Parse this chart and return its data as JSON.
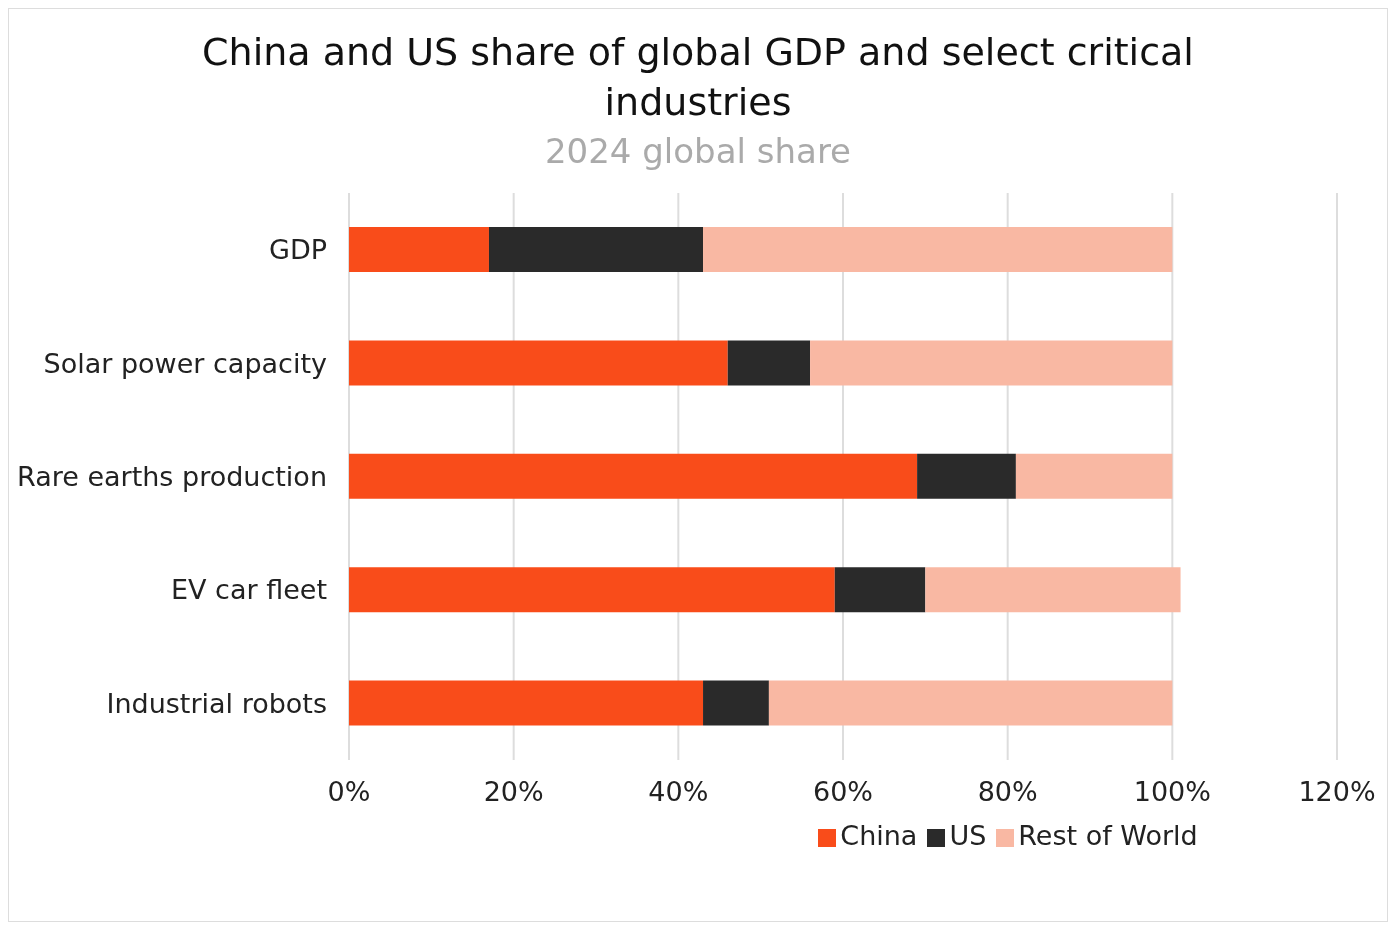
{
  "chart_data": {
    "type": "bar",
    "orientation": "horizontal",
    "stacked": true,
    "title": "China and US share of global GDP and select critical industries",
    "subtitle": "2024 global share",
    "categories": [
      "GDP",
      "Solar power capacity",
      "Rare earths production",
      "EV car fleet",
      "Industrial robots"
    ],
    "series": [
      {
        "name": "China",
        "color": "#f94c1a",
        "values": [
          17,
          46,
          69,
          59,
          43
        ]
      },
      {
        "name": "US",
        "color": "#2a2a2a",
        "values": [
          26,
          10,
          12,
          11,
          8
        ]
      },
      {
        "name": "Rest of World",
        "color": "#f9b8a3",
        "values": [
          57,
          44,
          19,
          31,
          49
        ]
      }
    ],
    "xlim": [
      0,
      120
    ],
    "xticks": [
      {
        "value": 0,
        "label": "0%"
      },
      {
        "value": 20,
        "label": "20%"
      },
      {
        "value": 40,
        "label": "40%"
      },
      {
        "value": 60,
        "label": "60%"
      },
      {
        "value": 80,
        "label": "80%"
      },
      {
        "value": 100,
        "label": "100%"
      },
      {
        "value": 120,
        "label": "120%"
      }
    ],
    "grid": "x",
    "legend": "bottom"
  }
}
